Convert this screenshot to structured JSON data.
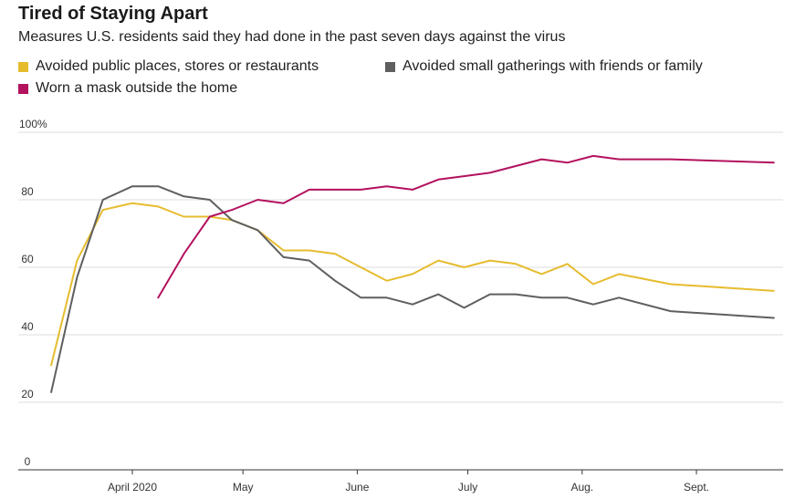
{
  "chart_data": {
    "type": "line",
    "title": "Tired of Staying Apart",
    "subtitle": "Measures U.S. residents said they had done in the past seven days against the virus",
    "x_tick_labels": [
      "April 2020",
      "May",
      "June",
      "July",
      "Aug.",
      "Sept."
    ],
    "y_tick_labels": [
      "100%",
      "80",
      "60",
      "40",
      "20",
      "0"
    ],
    "ylim": [
      0,
      100
    ],
    "grid": true,
    "legend_position": "top",
    "series": [
      {
        "name": "Avoided public places, stores or restaurants",
        "color": "#e6bc2f",
        "points": [
          {
            "date": "2020-03-10",
            "value": 31
          },
          {
            "date": "2020-03-17",
            "value": 62
          },
          {
            "date": "2020-03-24",
            "value": 77
          },
          {
            "date": "2020-04-01",
            "value": 79
          },
          {
            "date": "2020-04-08",
            "value": 78
          },
          {
            "date": "2020-04-15",
            "value": 75
          },
          {
            "date": "2020-04-22",
            "value": 75
          },
          {
            "date": "2020-04-28",
            "value": 74
          },
          {
            "date": "2020-05-05",
            "value": 71
          },
          {
            "date": "2020-05-12",
            "value": 65
          },
          {
            "date": "2020-05-19",
            "value": 65
          },
          {
            "date": "2020-05-26",
            "value": 64
          },
          {
            "date": "2020-06-02",
            "value": 60
          },
          {
            "date": "2020-06-09",
            "value": 56
          },
          {
            "date": "2020-06-16",
            "value": 58
          },
          {
            "date": "2020-06-23",
            "value": 62
          },
          {
            "date": "2020-06-30",
            "value": 60
          },
          {
            "date": "2020-07-07",
            "value": 62
          },
          {
            "date": "2020-07-14",
            "value": 61
          },
          {
            "date": "2020-07-21",
            "value": 58
          },
          {
            "date": "2020-07-28",
            "value": 61
          },
          {
            "date": "2020-08-04",
            "value": 55
          },
          {
            "date": "2020-08-11",
            "value": 58
          },
          {
            "date": "2020-08-25",
            "value": 55
          },
          {
            "date": "2020-09-22",
            "value": 53
          }
        ]
      },
      {
        "name": "Avoided small gatherings with friends or family",
        "color": "#5f5f5f",
        "points": [
          {
            "date": "2020-03-10",
            "value": 23
          },
          {
            "date": "2020-03-17",
            "value": 57
          },
          {
            "date": "2020-03-24",
            "value": 80
          },
          {
            "date": "2020-04-01",
            "value": 84
          },
          {
            "date": "2020-04-08",
            "value": 84
          },
          {
            "date": "2020-04-15",
            "value": 81
          },
          {
            "date": "2020-04-22",
            "value": 80
          },
          {
            "date": "2020-04-28",
            "value": 74
          },
          {
            "date": "2020-05-05",
            "value": 71
          },
          {
            "date": "2020-05-12",
            "value": 63
          },
          {
            "date": "2020-05-19",
            "value": 62
          },
          {
            "date": "2020-05-26",
            "value": 56
          },
          {
            "date": "2020-06-02",
            "value": 51
          },
          {
            "date": "2020-06-09",
            "value": 51
          },
          {
            "date": "2020-06-16",
            "value": 49
          },
          {
            "date": "2020-06-23",
            "value": 52
          },
          {
            "date": "2020-06-30",
            "value": 48
          },
          {
            "date": "2020-07-07",
            "value": 52
          },
          {
            "date": "2020-07-14",
            "value": 52
          },
          {
            "date": "2020-07-21",
            "value": 51
          },
          {
            "date": "2020-07-28",
            "value": 51
          },
          {
            "date": "2020-08-04",
            "value": 49
          },
          {
            "date": "2020-08-11",
            "value": 51
          },
          {
            "date": "2020-08-25",
            "value": 47
          },
          {
            "date": "2020-09-22",
            "value": 45
          }
        ]
      },
      {
        "name": "Worn a mask outside the home",
        "color": "#b3125e",
        "points": [
          {
            "date": "2020-04-08",
            "value": 51
          },
          {
            "date": "2020-04-15",
            "value": 64
          },
          {
            "date": "2020-04-22",
            "value": 75
          },
          {
            "date": "2020-04-28",
            "value": 77
          },
          {
            "date": "2020-05-05",
            "value": 80
          },
          {
            "date": "2020-05-12",
            "value": 79
          },
          {
            "date": "2020-05-19",
            "value": 83
          },
          {
            "date": "2020-05-26",
            "value": 83
          },
          {
            "date": "2020-06-02",
            "value": 83
          },
          {
            "date": "2020-06-09",
            "value": 84
          },
          {
            "date": "2020-06-16",
            "value": 83
          },
          {
            "date": "2020-06-23",
            "value": 86
          },
          {
            "date": "2020-06-30",
            "value": 87
          },
          {
            "date": "2020-07-07",
            "value": 88
          },
          {
            "date": "2020-07-14",
            "value": 90
          },
          {
            "date": "2020-07-21",
            "value": 92
          },
          {
            "date": "2020-07-28",
            "value": 91
          },
          {
            "date": "2020-08-04",
            "value": 93
          },
          {
            "date": "2020-08-11",
            "value": 92
          },
          {
            "date": "2020-08-25",
            "value": 92
          },
          {
            "date": "2020-09-22",
            "value": 91
          }
        ]
      }
    ]
  }
}
